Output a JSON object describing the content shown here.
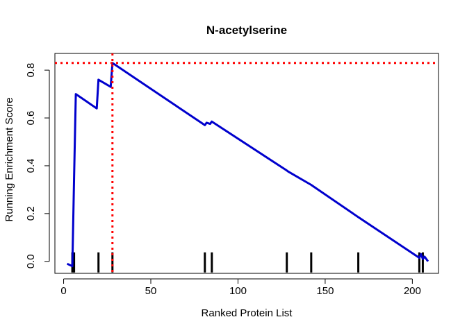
{
  "chart_data": {
    "type": "line",
    "title": "N-acetylserine",
    "xlabel": "Ranked Protein List",
    "ylabel": "Running Enrichment Score",
    "xlim": [
      -5,
      215
    ],
    "ylim": [
      -0.05,
      0.87
    ],
    "x_ticks": [
      0,
      50,
      100,
      150,
      200
    ],
    "y_ticks": [
      0.0,
      0.2,
      0.4,
      0.6,
      0.8
    ],
    "x_tick_labels": [
      "0",
      "50",
      "100",
      "150",
      "200"
    ],
    "y_tick_labels": [
      "0.0",
      "0.2",
      "0.4",
      "0.6",
      "0.8"
    ],
    "grid": false,
    "series": [
      {
        "color": "#0000cd",
        "x": [
          2,
          5,
          6,
          7,
          19,
          20,
          27,
          28,
          81,
          82,
          84,
          85,
          128,
          129,
          142,
          143,
          168,
          169,
          204,
          205,
          206,
          207,
          209
        ],
        "y": [
          -0.01,
          -0.02,
          0.35,
          0.7,
          0.64,
          0.76,
          0.73,
          0.83,
          0.57,
          0.58,
          0.575,
          0.585,
          0.38,
          0.375,
          0.32,
          0.315,
          0.19,
          0.185,
          0.015,
          0.03,
          0.01,
          0.02,
          0.0
        ]
      }
    ],
    "hits": [
      5,
      6,
      20,
      28,
      81,
      85,
      128,
      142,
      169,
      204,
      206
    ],
    "peak": {
      "x": 28,
      "y": 0.83,
      "color": "#ff0000"
    }
  }
}
